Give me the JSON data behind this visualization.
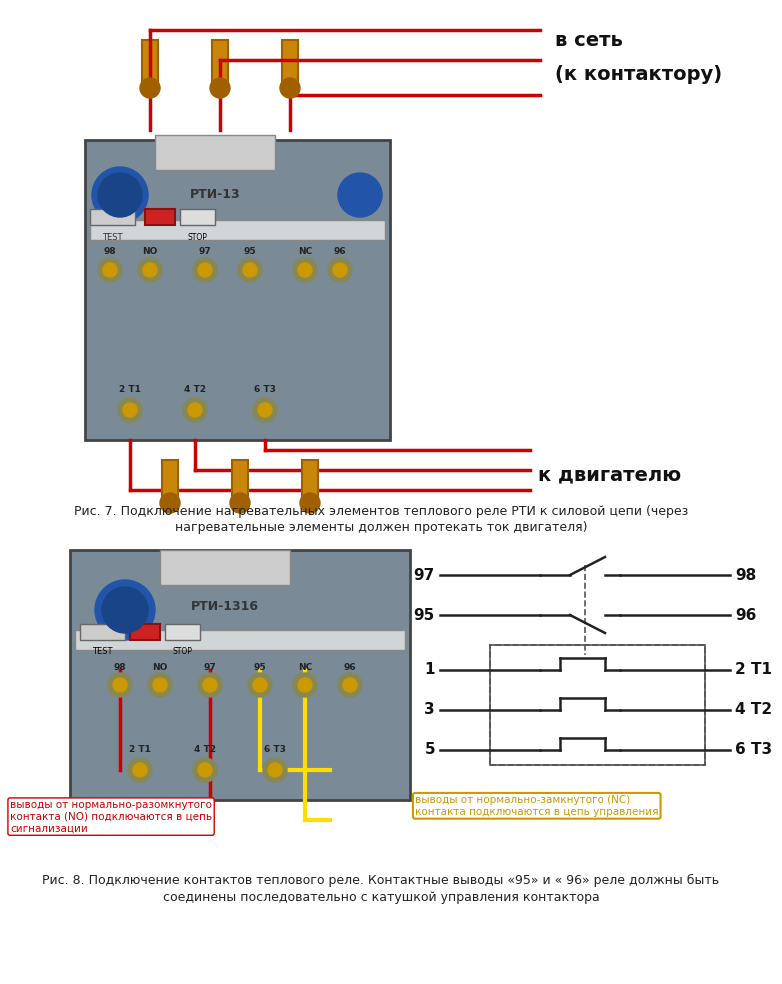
{
  "bg_color": "#ffffff",
  "title_top": "в сеть\n(к контактору)",
  "title_motor": "к двигателю",
  "caption1_line1": "Рис. 7. Подключение нагревательных элементов теплового реле РТИ к силовой цепи (через",
  "caption1_line2": "нагревательные элементы должен протекать ток двигателя)",
  "label_NO_left": "выводы от нормально-разомкнутого\nконтакта (NO) подключаются в цепь\nсигнализации",
  "label_NC_right": "выводы от нормально-замкнутого (NC)\nконтакта подключаются в цепь управления",
  "caption2_line1": "Рис. 8. Подключение контактов теплового реле. Контактные выводы «95» и « 96» реле должны быть",
  "caption2_line2": "соединены последовательно с катушкой управления контактора",
  "contact_labels": [
    "97",
    "98",
    "95",
    "96",
    "1",
    "2 T1",
    "3",
    "4 T2",
    "5",
    "6 T3"
  ],
  "wire_color": "#cc0000",
  "yellow_color": "#ffdd00",
  "diagram_line_color": "#222222"
}
